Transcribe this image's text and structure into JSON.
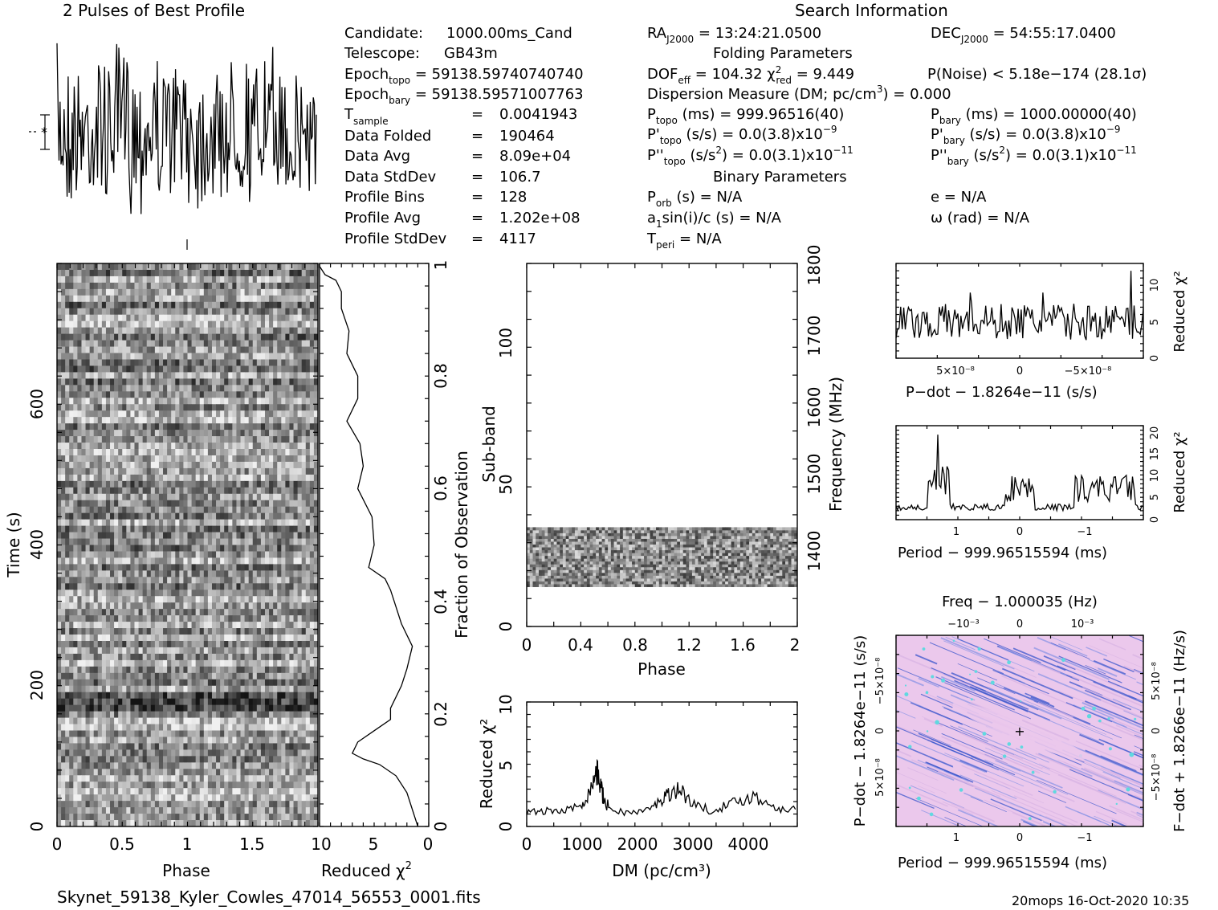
{
  "title_pulses": "2 Pulses of Best Profile",
  "search_title": "Search Information",
  "filename": "Skynet_59138_Kyler_Cowles_47014_56553_0001.fits",
  "footer_stamp": "20mops  16-Oct-2020 10:35",
  "info": {
    "candidate_label": "Candidate:",
    "candidate": "1000.00ms_Cand",
    "telescope_label": "Telescope:",
    "telescope": "GB43m",
    "epoch_topo": "59138.59740740740",
    "epoch_bary": "59138.59571007763",
    "t_sample": "0.0041943",
    "data_folded": "190464",
    "data_avg": "8.09e+04",
    "data_stddev": "106.7",
    "profile_bins": "128",
    "profile_avg": "1.202e+08",
    "profile_stddev": "4117",
    "labels": {
      "data_folded": "Data Folded",
      "data_avg": "Data Avg",
      "data_stddev": "Data StdDev",
      "profile_bins": "Profile Bins",
      "profile_avg": "Profile Avg",
      "profile_stddev": "Profile StdDev"
    }
  },
  "search": {
    "ra": "13:24:21.0500",
    "dec": "54:55:17.0400",
    "folding_title": "Folding Parameters",
    "dof_eff": "104.32",
    "chi2_red": "9.449",
    "p_noise": "< 5.18e−174",
    "sigma": "(28.1σ)",
    "dm_line": "Dispersion Measure (DM; pc/cm",
    "dm_value": ") = 0.000",
    "p_topo": "999.96516(40)",
    "p_bary": "1000.00000(40)",
    "pd_value": "0.0(3.8)x10",
    "pd_exp": "−9",
    "pdd_value": "0.0(3.1)x10",
    "pdd_exp": "−11",
    "binary_title": "Binary Parameters",
    "p_orb": "N/A",
    "a1sini": "N/A",
    "t_peri": "N/A",
    "e": "N/A",
    "omega": "N/A"
  },
  "chart_data": [
    {
      "type": "line",
      "name": "pulse_profile",
      "title": "2 Pulses of Best Profile",
      "note": "noisy profile, two pulse periods",
      "bins": 128,
      "pulses": 2
    },
    {
      "type": "heatmap",
      "name": "time_vs_phase",
      "xlabel": "Phase",
      "ylabel": "Time (s)",
      "x_ticks": [
        "0",
        "0.5",
        "1",
        "1.5"
      ],
      "y_ticks": [
        "0",
        "200",
        "400",
        "600"
      ],
      "xlim": [
        0,
        2
      ],
      "ylim": [
        0,
        800
      ],
      "dark_band_time_s": 185
    },
    {
      "type": "line",
      "name": "reduced_chi2_vs_time",
      "xlabel": "Reduced χ",
      "ylabel": "Fraction of Observation",
      "x_ticks": [
        "10",
        "5",
        "0"
      ],
      "y_ticks": [
        "0",
        "0.2",
        "0.4",
        "0.6",
        "0.8",
        "1"
      ],
      "xlim": [
        10,
        0
      ],
      "ylim": [
        0,
        1
      ],
      "x": [
        1,
        1.5,
        2,
        3,
        4.5,
        6,
        7,
        6.5,
        5,
        3.5,
        3.5,
        2.5,
        2,
        1.5,
        2.5,
        3,
        3.5,
        4,
        5.5,
        5,
        5.2,
        6.5,
        6,
        6.3,
        7.5,
        6.5,
        6.5,
        7.5,
        7.3,
        8,
        8,
        8.5,
        9.5,
        10,
        10
      ],
      "y": [
        0,
        0.03,
        0.06,
        0.09,
        0.11,
        0.12,
        0.13,
        0.15,
        0.17,
        0.19,
        0.21,
        0.25,
        0.28,
        0.32,
        0.36,
        0.39,
        0.42,
        0.44,
        0.46,
        0.5,
        0.55,
        0.6,
        0.64,
        0.68,
        0.72,
        0.76,
        0.8,
        0.84,
        0.88,
        0.92,
        0.95,
        0.97,
        0.98,
        0.995,
        1
      ]
    },
    {
      "type": "heatmap",
      "name": "subband_vs_phase",
      "xlabel": "Phase",
      "ylabel": "Sub-band",
      "ylabel_right": "Frequency (MHz)",
      "x_ticks": [
        "0",
        "0.4",
        "0.8",
        "1.2",
        "1.6",
        "2"
      ],
      "y_ticks": [
        "0",
        "50",
        "100"
      ],
      "y_ticks_right": [
        "1400",
        "1500",
        "1600",
        "1700",
        "1800"
      ],
      "xlim": [
        0,
        2
      ],
      "ylim": [
        0,
        128
      ],
      "filled_subbands": [
        14,
        35
      ]
    },
    {
      "type": "line",
      "name": "reduced_chi2_vs_dm",
      "xlabel": "DM (pc/cm³)",
      "ylabel": "Reduced χ²",
      "x_ticks": [
        "0",
        "1000",
        "2000",
        "3000",
        "4000"
      ],
      "y_ticks": [
        "0",
        "5",
        "10"
      ],
      "xlim": [
        0,
        4900
      ],
      "ylim": [
        0,
        10
      ],
      "x": [
        0,
        200,
        400,
        600,
        800,
        1000,
        1100,
        1200,
        1250,
        1300,
        1350,
        1400,
        1500,
        1700,
        1900,
        2100,
        2300,
        2450,
        2550,
        2650,
        2750,
        2900,
        3100,
        3300,
        3500,
        3700,
        3900,
        4100,
        4300,
        4500,
        4700,
        4900
      ],
      "y": [
        1.2,
        1.1,
        1.3,
        1.2,
        1.4,
        1.8,
        2.5,
        3.5,
        4.5,
        4.0,
        3.2,
        2.0,
        1.5,
        1.2,
        1.1,
        1.2,
        1.6,
        2.2,
        2.6,
        2.8,
        3.0,
        2.4,
        1.6,
        1.3,
        1.5,
        1.8,
        2.2,
        2.4,
        2.0,
        1.6,
        1.4,
        1.3
      ]
    },
    {
      "type": "line",
      "name": "reduced_chi2_vs_pdot",
      "xlabel": "P−dot − 1.8264e−11 (s/s)",
      "ylabel": "Reduced χ²",
      "x_ticks": [
        "5×10⁻⁸",
        "0",
        "−5×10⁻⁸"
      ],
      "y_ticks": [
        "0",
        "5",
        "10"
      ],
      "ylim": [
        0,
        13
      ],
      "peak_reduced_chi2": 12
    },
    {
      "type": "line",
      "name": "reduced_chi2_vs_period",
      "xlabel": "Period − 999.96515594 (ms)",
      "ylabel": "Reduced χ²",
      "x_ticks": [
        "1",
        "0",
        "−1"
      ],
      "y_ticks": [
        "0",
        "5",
        "10",
        "15",
        "20"
      ],
      "ylim": [
        0,
        21
      ],
      "peak_reduced_chi2": 19
    },
    {
      "type": "heatmap",
      "name": "pdot_vs_period",
      "title": "Freq − 1.000035 (Hz)",
      "xlabel": "Period − 999.96515594 (ms)",
      "ylabel": "P−dot − 1.8264e−11 (s/s)",
      "ylabel_right": "F−dot + 1.8266e−11 (Hz/s)",
      "x_ticks": [
        "1",
        "0",
        "−1"
      ],
      "x_ticks_top": [
        "−10⁻³",
        "0",
        "10⁻³"
      ],
      "y_ticks": [
        "5×10⁻⁸",
        "0",
        "−5×10⁻⁸"
      ],
      "y_ticks_right": [
        "−5×10⁻⁸",
        "0",
        "5×10⁻⁸"
      ],
      "colors": [
        "#ebc8ec",
        "#d8b4e4",
        "#8c96e6",
        "#3a55cc",
        "#60d8e0"
      ]
    }
  ]
}
